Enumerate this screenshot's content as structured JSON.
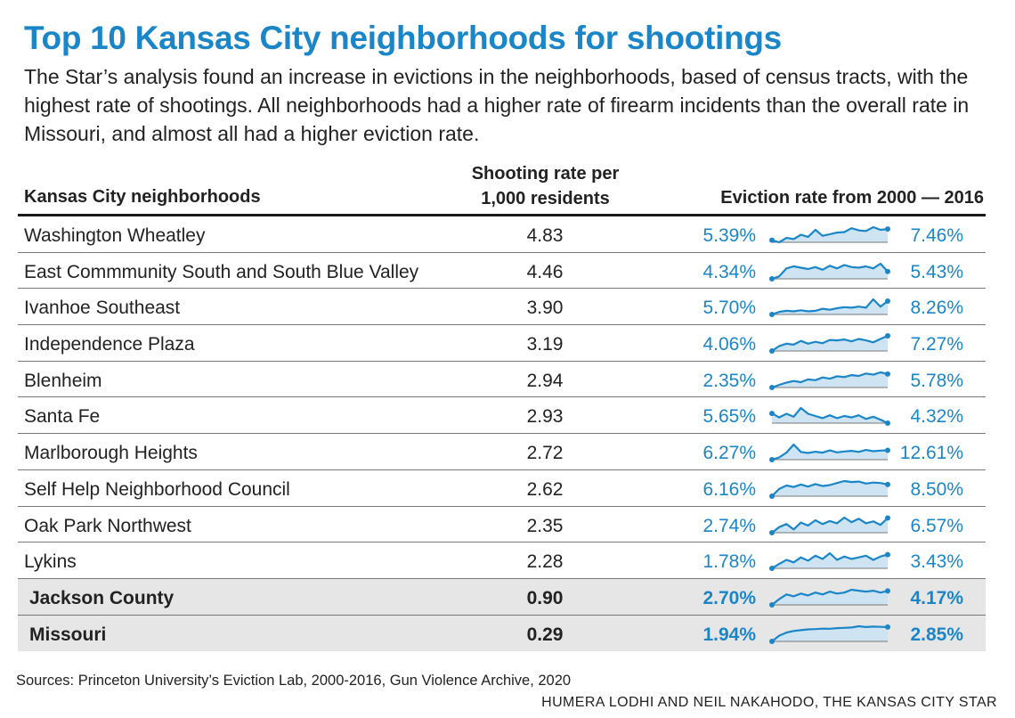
{
  "title": "Top 10 Kansas City neighborhoods for shootings",
  "subtitle": "The Star’s analysis found an increase in evictions in the neighborhoods, based of census tracts, with the highest rate of shootings. All neighborhoods had a higher rate of firearm incidents than the overall rate in Missouri, and almost all had a higher eviction rate.",
  "headers": {
    "neighborhoods": "Kansas City neighborhoods",
    "shooting_line1": "Shooting rate per",
    "shooting_line2": "1,000 residents",
    "eviction": "Eviction rate from 2000 — 2016"
  },
  "rows": [
    {
      "name": "Washington Wheatley",
      "shooting_rate": "4.83",
      "eviction_start": "5.39%",
      "eviction_end": "7.46%",
      "trend": [
        5.39,
        5.0,
        5.8,
        5.6,
        6.4,
        6.0,
        7.3,
        6.2,
        6.5,
        6.8,
        6.9,
        7.6,
        7.2,
        7.1,
        7.8,
        7.3,
        7.46
      ]
    },
    {
      "name": "East Commmunity South and South Blue Valley",
      "shooting_rate": "4.46",
      "eviction_start": "4.34%",
      "eviction_end": "5.43%",
      "trend": [
        4.34,
        4.7,
        5.9,
        6.2,
        6.0,
        5.8,
        6.1,
        5.7,
        6.3,
        5.9,
        6.4,
        6.1,
        6.0,
        6.2,
        5.9,
        6.6,
        5.43
      ]
    },
    {
      "name": "Ivanhoe Southeast",
      "shooting_rate": "3.90",
      "eviction_start": "5.70%",
      "eviction_end": "8.26%",
      "trend": [
        5.7,
        6.2,
        6.4,
        6.3,
        6.5,
        6.3,
        6.4,
        6.8,
        6.6,
        6.9,
        7.1,
        7.0,
        7.2,
        7.0,
        8.6,
        7.2,
        8.26
      ]
    },
    {
      "name": "Independence Plaza",
      "shooting_rate": "3.19",
      "eviction_start": "4.06%",
      "eviction_end": "7.27%",
      "trend": [
        4.06,
        5.1,
        5.6,
        5.4,
        6.2,
        5.6,
        6.0,
        5.7,
        6.4,
        6.3,
        6.5,
        6.1,
        6.6,
        6.3,
        5.9,
        6.6,
        7.27
      ]
    },
    {
      "name": "Blenheim",
      "shooting_rate": "2.94",
      "eviction_start": "2.35%",
      "eviction_end": "5.78%",
      "trend": [
        2.35,
        3.0,
        3.6,
        4.0,
        3.7,
        4.4,
        4.2,
        4.9,
        4.6,
        5.2,
        5.0,
        5.5,
        5.3,
        5.9,
        5.6,
        6.2,
        5.78
      ]
    },
    {
      "name": "Santa Fe",
      "shooting_rate": "2.93",
      "eviction_start": "5.65%",
      "eviction_end": "4.32%",
      "trend": [
        5.65,
        5.1,
        5.6,
        5.2,
        6.4,
        5.6,
        5.3,
        5.0,
        5.4,
        5.0,
        5.3,
        5.1,
        5.4,
        4.9,
        5.2,
        4.8,
        4.32
      ]
    },
    {
      "name": "Marlborough Heights",
      "shooting_rate": "2.72",
      "eviction_start": "6.27%",
      "eviction_end": "12.61%",
      "trend": [
        6.27,
        7.8,
        11.0,
        16.5,
        11.5,
        10.8,
        11.6,
        11.0,
        12.5,
        11.2,
        11.8,
        12.2,
        11.5,
        12.8,
        12.0,
        12.4,
        12.61
      ]
    },
    {
      "name": "Self Help Neighborhood Council",
      "shooting_rate": "2.62",
      "eviction_start": "6.16%",
      "eviction_end": "8.50%",
      "trend": [
        6.16,
        7.6,
        8.3,
        8.0,
        8.5,
        8.1,
        8.6,
        8.2,
        8.4,
        8.8,
        9.2,
        9.0,
        9.1,
        8.7,
        8.9,
        8.8,
        8.5
      ]
    },
    {
      "name": "Oak Park Northwest",
      "shooting_rate": "2.35",
      "eviction_start": "2.74%",
      "eviction_end": "6.57%",
      "trend": [
        2.74,
        4.2,
        5.0,
        3.6,
        5.4,
        4.6,
        6.0,
        5.0,
        5.8,
        5.2,
        6.7,
        5.5,
        6.4,
        5.2,
        5.7,
        4.8,
        6.57
      ]
    },
    {
      "name": "Lykins",
      "shooting_rate": "2.28",
      "eviction_start": "1.78%",
      "eviction_end": "3.43%",
      "trend": [
        1.78,
        2.3,
        2.8,
        2.5,
        3.1,
        2.7,
        3.3,
        2.9,
        3.6,
        2.8,
        3.2,
        2.9,
        3.1,
        3.3,
        2.8,
        3.2,
        3.43
      ]
    }
  ],
  "totals": [
    {
      "name": "Jackson County",
      "shooting_rate": "0.90",
      "eviction_start": "2.70%",
      "eviction_end": "4.17%",
      "trend": [
        2.7,
        3.3,
        3.8,
        3.6,
        3.9,
        3.7,
        4.0,
        3.8,
        4.1,
        3.9,
        4.0,
        4.3,
        4.2,
        4.1,
        4.2,
        4.0,
        4.17
      ]
    },
    {
      "name": "Missouri",
      "shooting_rate": "0.29",
      "eviction_start": "1.94%",
      "eviction_end": "2.85%",
      "trend": [
        1.94,
        2.3,
        2.5,
        2.6,
        2.65,
        2.7,
        2.72,
        2.75,
        2.74,
        2.78,
        2.8,
        2.82,
        2.9,
        2.85,
        2.88,
        2.86,
        2.85
      ]
    }
  ],
  "sources": "Sources: Princeton University’s Eviction Lab, 2000-2016, Gun Violence Archive, 2020",
  "credit": "HUMERA LODHI AND NEIL NAKAHODO, THE KANSAS CITY STAR",
  "colors": {
    "accent": "#1a86c8",
    "spark_fill": "#cfe4f2",
    "total_bg": "#e6e6e6"
  }
}
